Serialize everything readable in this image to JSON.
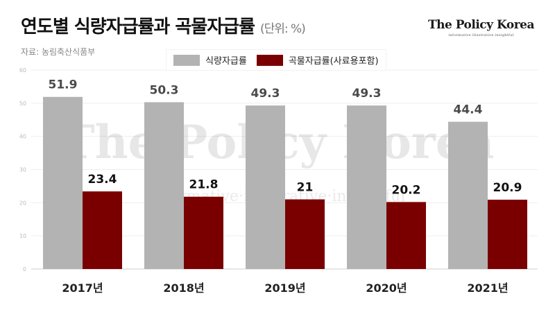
{
  "header": {
    "title": "연도별 식량자급률과 곡물자급률",
    "unit": "(단위: %)",
    "source": "자료: 농림축산식품부"
  },
  "brand": {
    "name": "The Policy Korea",
    "tagline": "informative·illustrative·insightful"
  },
  "watermark": {
    "main": "The Policy Korea",
    "sub": "informative·illustrative·insightful"
  },
  "chart_data": {
    "type": "bar",
    "categories": [
      "2017년",
      "2018년",
      "2019년",
      "2020년",
      "2021년"
    ],
    "series": [
      {
        "name": "식량자급률",
        "values": [
          51.9,
          50.3,
          49.3,
          49.3,
          44.4
        ],
        "labels": [
          "51.9",
          "50.3",
          "49.3",
          "49.3",
          "44.4"
        ],
        "color": "#b3b3b3"
      },
      {
        "name": "곡물자급률(사료용포함)",
        "values": [
          23.4,
          21.8,
          21,
          20.2,
          20.9
        ],
        "labels": [
          "23.4",
          "21.8",
          "21",
          "20.2",
          "20.9"
        ],
        "color": "#7a0000"
      }
    ],
    "ylim": [
      0,
      60
    ],
    "yticks": [
      0,
      10,
      20,
      30,
      40,
      50,
      60
    ],
    "grid": true,
    "legend": "top"
  }
}
